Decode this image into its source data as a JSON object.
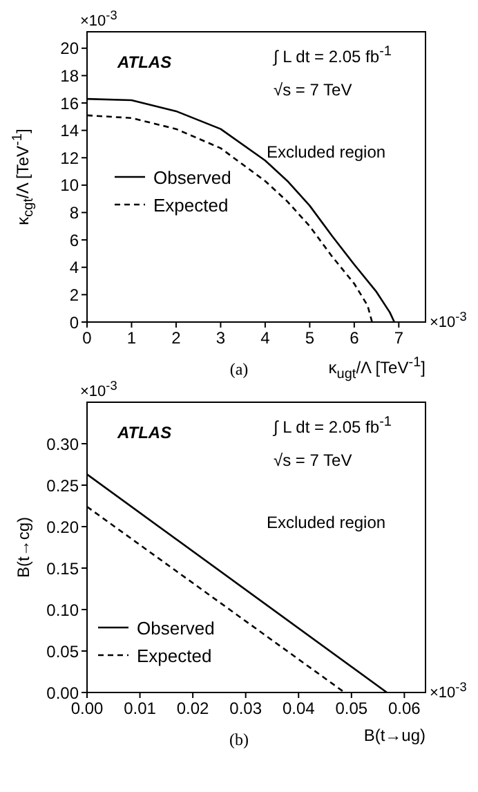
{
  "chart_data": [
    {
      "type": "line",
      "xlabel": "κ$_{ugt}$/Λ [TeV$^{-1}$]",
      "ylabel": "κ$_{cgt}$/Λ [TeV$^{-1}$]",
      "annotations": [
        "×10$^{-3}$",
        "×10$^{-3}$",
        "ATLAS",
        "∫ L dt = 2.05 fb$^{-1}$",
        "√s = 7 TeV",
        "Excluded region",
        "(a)"
      ],
      "series": [
        {
          "name": "Observed",
          "color": "#000000",
          "line_style": "solid",
          "x": [
            0,
            1,
            2,
            3,
            4,
            4.5,
            5,
            5.5,
            6,
            6.5,
            6.8,
            6.9
          ],
          "values": [
            16.3,
            16.2,
            15.4,
            14.1,
            11.8,
            10.3,
            8.5,
            6.3,
            4.2,
            2.2,
            0.7,
            0
          ]
        },
        {
          "name": "Expected",
          "color": "#000000",
          "line_style": "dashed",
          "x": [
            0,
            1,
            2,
            3,
            4,
            4.5,
            5,
            5.5,
            6,
            6.3,
            6.4
          ],
          "values": [
            15.1,
            14.9,
            14.1,
            12.7,
            10.3,
            8.8,
            7.0,
            4.8,
            2.8,
            1.2,
            0
          ]
        }
      ],
      "xlim": [
        0,
        7.6
      ],
      "xticks": [
        0,
        1,
        2,
        3,
        4,
        5,
        6,
        7
      ],
      "ylim": [
        0,
        21.2
      ],
      "yticks": [
        0,
        2,
        4,
        6,
        8,
        10,
        12,
        14,
        16,
        18,
        20
      ],
      "grid": false,
      "legend": "left",
      "marker": "none"
    },
    {
      "type": "line",
      "xlabel": "B(t→ug)",
      "ylabel": "B(t→cg)",
      "annotations": [
        "×10$^{-3}$",
        "×10$^{-3}$",
        "ATLAS",
        "∫ L dt = 2.05 fb$^{-1}$",
        "√s = 7 TeV",
        "Excluded region",
        "(b)"
      ],
      "series": [
        {
          "name": "Observed",
          "color": "#000000",
          "line_style": "solid",
          "x": [
            0,
            0.0567
          ],
          "values": [
            0.263,
            0
          ]
        },
        {
          "name": "Expected",
          "color": "#000000",
          "line_style": "dashed",
          "x": [
            0,
            0.0487
          ],
          "values": [
            0.224,
            0
          ]
        }
      ],
      "xlim": [
        0,
        0.064
      ],
      "xticks": [
        {
          "value": 0,
          "label": "0.00"
        },
        {
          "value": 0.01,
          "label": "0.01"
        },
        {
          "value": 0.02,
          "label": "0.02"
        },
        {
          "value": 0.03,
          "label": "0.03"
        },
        {
          "value": 0.04,
          "label": "0.04"
        },
        {
          "value": 0.05,
          "label": "0.05"
        },
        {
          "value": 0.06,
          "label": "0.06"
        }
      ],
      "ylim": [
        0,
        0.35
      ],
      "yticks": [
        {
          "value": 0,
          "label": "0.00"
        },
        {
          "value": 0.05,
          "label": "0.05"
        },
        {
          "value": 0.1,
          "label": "0.10"
        },
        {
          "value": 0.15,
          "label": "0.15"
        },
        {
          "value": 0.2,
          "label": "0.20"
        },
        {
          "value": 0.25,
          "label": "0.25"
        },
        {
          "value": 0.3,
          "label": "0.30"
        }
      ],
      "grid": false,
      "legend": "bottom left",
      "marker": "none"
    }
  ]
}
